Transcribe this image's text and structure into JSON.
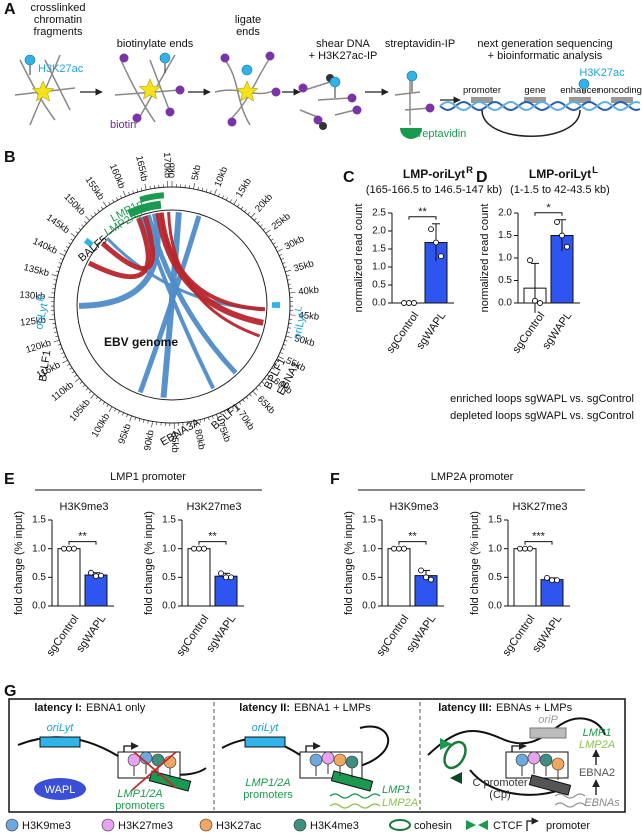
{
  "figure": {
    "letters": [
      "A",
      "B",
      "C",
      "D",
      "E",
      "F",
      "G"
    ],
    "panel_a": {
      "steps": [
        [
          "crosslinked",
          "chromatin",
          "fragments"
        ],
        [
          "biotinylate ends"
        ],
        [
          "ligate",
          "ends"
        ],
        [
          "shear DNA",
          "+ H3K27ac-IP"
        ],
        [
          "streptavidin-IP"
        ],
        [
          "next generation sequencing",
          "+ bioinformatic analysis"
        ]
      ],
      "mark_label": "H3K27ac",
      "biotin_label": "biotin",
      "streptavidin_label": "streptavidin",
      "track": [
        "promoter",
        "gene",
        "enhancer",
        "noncoding"
      ],
      "track_mark_label": "H3K27ac"
    },
    "panel_b": {
      "ring_labels": [
        "0kb",
        "5kb",
        "10kb",
        "15kb",
        "20kb",
        "25kb",
        "30kb",
        "35kb",
        "40kb",
        "45kb",
        "50kb",
        "55kb",
        "60kb",
        "65kb",
        "70kb",
        "75kb",
        "80kb",
        "85kb",
        "90kb",
        "95kb",
        "100kb",
        "105kb",
        "110kb",
        "115kb",
        "120kb",
        "125kb",
        "130kb",
        "135kb",
        "140kb",
        "145kb",
        "150kb",
        "155kb",
        "160kb",
        "165kb",
        "170kb"
      ],
      "genes": {
        "lmp1p": "LMP1p",
        "lmp2ap": "LMP2Ap",
        "balf5": "BALF5",
        "orilyt_r": "oriLyt",
        "orilyt_r_sup": "R",
        "bclf1": "BcLF1",
        "bplf1": "BPLF1",
        "ebna1": "EBNA1",
        "orilyt_l": "oriLyt",
        "orilyt_l_sup": "L",
        "bslf1": "BSLF1",
        "ebna3a": "EBNA3A"
      },
      "center": "EBV genome",
      "legend": [
        {
          "name": "enriched loops sgWAPL vs. sgControl",
          "color": "#b8262c"
        },
        {
          "name": "depleted loops sgWAPL vs. sgControl",
          "color": "#4f8cc9"
        }
      ]
    },
    "panel_e_header": "LMP1 promoter",
    "panel_f_header": "LMP2A promoter",
    "panel_g": {
      "columns": [
        {
          "title_bold": "latency I:",
          "title_rest": "EBNA1 only"
        },
        {
          "title_bold": "latency II:",
          "title_rest": "EBNA1 + LMPs"
        },
        {
          "title_bold": "latency III:",
          "title_rest": "EBNAs + LMPs"
        }
      ],
      "col1": {
        "orilyt": "oriLyt",
        "wapl": "WAPL",
        "promoters": [
          "LMP1/2A",
          "promoters"
        ]
      },
      "col2": {
        "orilyt": "oriLyt",
        "promoters": [
          "LMP1/2A",
          "promoters"
        ],
        "transcripts": [
          "LMP1",
          "LMP2A"
        ]
      },
      "col3": {
        "orip": "oriP",
        "cp": [
          "C promoter",
          "(Cp)"
        ],
        "lmps": [
          "LMP1",
          "LMP2A"
        ],
        "ebna2": "EBNA2",
        "ebnas": "EBNAs"
      },
      "legend": [
        "H3K9me3",
        "H3K27me3",
        "H3K27ac",
        "H3K4me3",
        "cohesin",
        "CTCF",
        "promoter"
      ],
      "legend_colors": [
        "#6fa8dc",
        "#e6a4f0",
        "#f0a860",
        "#3f8f7f"
      ]
    }
  },
  "chart_data": [
    {
      "type": "bar",
      "title": "LMP-oriLyt",
      "title_sup": "R",
      "subtitle": "(165-166.5 to 146.5-147 kb)",
      "ylabel": "normalized read count",
      "categories": [
        "sgControl",
        "sgWAPL"
      ],
      "values": [
        0,
        1.68
      ],
      "errors": [
        0,
        0.52
      ],
      "points": [
        [
          0,
          0,
          0
        ],
        [
          2.05,
          1.68,
          1.3
        ]
      ],
      "colors": [
        "#ffffff",
        "#2f55f0"
      ],
      "ylim": [
        0,
        2.5
      ],
      "yticks": [
        {
          "value": 0,
          "label": "0.0"
        },
        0.5,
        {
          "value": 1,
          "label": "1.0"
        },
        1.5,
        {
          "value": 2,
          "label": "2.0"
        },
        2.5
      ],
      "significance": "**"
    },
    {
      "type": "bar",
      "title": "LMP-oriLyt",
      "title_sup": "L",
      "subtitle": "(1-1.5 to 42-43.5 kb)",
      "ylabel": "normalized read count",
      "categories": [
        "sgControl",
        "sgWAPL"
      ],
      "values": [
        0.33,
        1.5
      ],
      "errors": [
        0.55,
        0.35
      ],
      "points": [
        [
          0.95,
          0.05,
          0
        ],
        [
          1.8,
          1.5,
          1.25
        ]
      ],
      "colors": [
        "#ffffff",
        "#2f55f0"
      ],
      "ylim": [
        0,
        2
      ],
      "yticks": [
        {
          "value": 0,
          "label": "0.0"
        },
        0.5,
        {
          "value": 1,
          "label": "1.0"
        },
        1.5,
        {
          "value": 2,
          "label": "2.0"
        }
      ],
      "significance": "*"
    },
    {
      "type": "bar",
      "title": "H3K9me3",
      "ylabel": "fold change (% input)",
      "categories": [
        "sgControl",
        "sgWAPL"
      ],
      "values": [
        1,
        0.54
      ],
      "errors": [
        0,
        0.04
      ],
      "points": [
        [
          1,
          1,
          1
        ],
        [
          0.58,
          0.52,
          0.53
        ]
      ],
      "colors": [
        "#ffffff",
        "#2f55f0"
      ],
      "ylim": [
        0,
        1.5
      ],
      "yticks": [
        {
          "value": 0,
          "label": "0.0"
        },
        0.5,
        {
          "value": 1,
          "label": "1.0"
        },
        1.5
      ],
      "significance": "**"
    },
    {
      "type": "bar",
      "title": "H3K27me3",
      "ylabel": "fold change (% input)",
      "categories": [
        "sgControl",
        "sgWAPL"
      ],
      "values": [
        1,
        0.52
      ],
      "errors": [
        0,
        0.05
      ],
      "points": [
        [
          1,
          1,
          1
        ],
        [
          0.57,
          0.5,
          0.5
        ]
      ],
      "colors": [
        "#ffffff",
        "#2f55f0"
      ],
      "ylim": [
        0,
        1.5
      ],
      "yticks": [
        {
          "value": 0,
          "label": "0.0"
        },
        0.5,
        {
          "value": 1,
          "label": "1.0"
        },
        1.5
      ],
      "significance": "**"
    },
    {
      "type": "bar",
      "title": "H3K9me3",
      "ylabel": "fold change (% input)",
      "categories": [
        "sgControl",
        "sgWAPL"
      ],
      "values": [
        1,
        0.53
      ],
      "errors": [
        0,
        0.09
      ],
      "points": [
        [
          1,
          1,
          1
        ],
        [
          0.62,
          0.5,
          0.46
        ]
      ],
      "colors": [
        "#ffffff",
        "#2f55f0"
      ],
      "ylim": [
        0,
        1.5
      ],
      "yticks": [
        {
          "value": 0,
          "label": "0.0"
        },
        0.5,
        {
          "value": 1,
          "label": "1.0"
        },
        1.5
      ],
      "significance": "**"
    },
    {
      "type": "bar",
      "title": "H3K27me3",
      "ylabel": "fold change (% input)",
      "categories": [
        "sgControl",
        "sgWAPL"
      ],
      "values": [
        1,
        0.46
      ],
      "errors": [
        0,
        0.03
      ],
      "points": [
        [
          1,
          1,
          1
        ],
        [
          0.49,
          0.45,
          0.45
        ]
      ],
      "colors": [
        "#ffffff",
        "#2f55f0"
      ],
      "ylim": [
        0,
        1.5
      ],
      "yticks": [
        {
          "value": 0,
          "label": "0.0"
        },
        0.5,
        {
          "value": 1,
          "label": "1.0"
        },
        1.5
      ],
      "significance": "***"
    }
  ]
}
